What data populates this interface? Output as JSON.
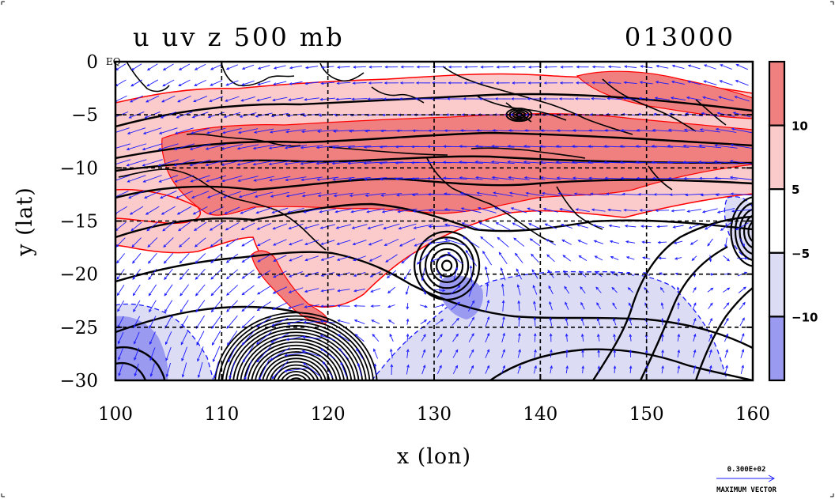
{
  "chart_data": {
    "type": "heatmap",
    "title": "u uv z 500 mb",
    "time_label": "013000",
    "xlabel": "x (lon)",
    "ylabel": "y (lat)",
    "xlim": [
      100,
      160
    ],
    "ylim": [
      -30,
      0
    ],
    "x_ticks": [
      100,
      110,
      120,
      130,
      140,
      150,
      160
    ],
    "y_ticks": [
      0,
      -5,
      -10,
      -15,
      -20,
      -25,
      -30
    ],
    "y_tick_labels": [
      "0",
      "−5",
      "−10",
      "−15",
      "−20",
      "−25",
      "−30"
    ],
    "eq_label": "EQ",
    "grid": true,
    "colorbar": {
      "levels": [
        10,
        5,
        -5,
        -10
      ],
      "level_labels": [
        "10",
        "5",
        "−5",
        "−10"
      ],
      "colors": [
        "#f08080",
        "#fbcaca",
        "#ffffff",
        "#dcdcf5",
        "#9a9af0"
      ]
    },
    "colors": {
      "strong_positive": "#f08080",
      "positive": "#fbcaca",
      "negative": "#dcdcf5",
      "strong_negative": "#9a9af0",
      "contour": "#000000",
      "coast": "#000000",
      "vector": "#1a1aff",
      "shade_edge_pos": "#ff0000",
      "shade_edge_neg": "#1a1aff"
    },
    "vector_key": {
      "value_label": "0.300E+02",
      "caption": "MAXIMUM VECTOR"
    }
  }
}
